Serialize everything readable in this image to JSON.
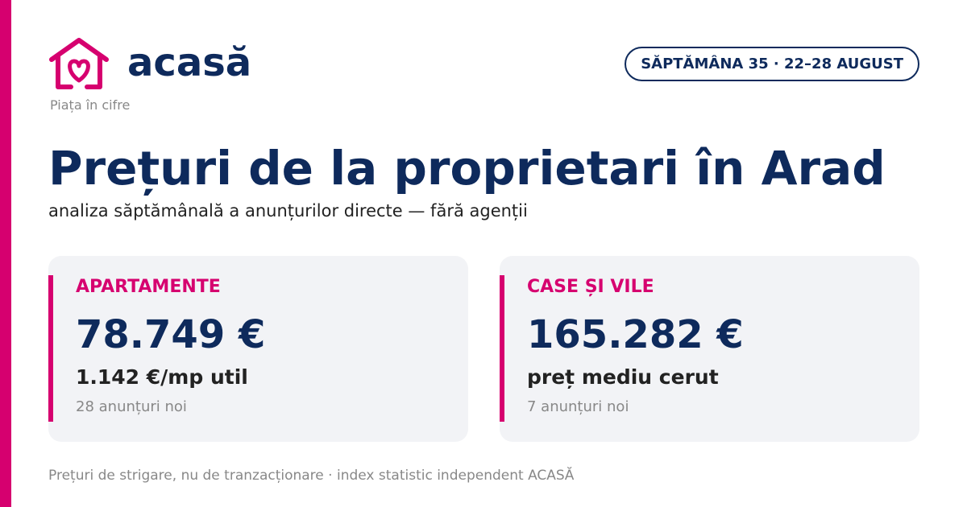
{
  "brand": {
    "name": "acasă",
    "tagline": "Piața în cifre"
  },
  "badge": "SĂPTĂMÂNA 35 · 22–28 AUGUST",
  "header": {
    "title": "Prețuri de la proprietari în Arad",
    "subtitle": "analiza săptămânală a anunțurilor directe — fără agenții"
  },
  "cards": [
    {
      "label": "APARTAMENTE",
      "price": "78.749 €",
      "detail": "1.142 €/mp util",
      "count": "28 anunțuri noi"
    },
    {
      "label": "CASE ȘI VILE",
      "price": "165.282 €",
      "detail": "preț mediu cerut",
      "count": "7 anunțuri noi"
    }
  ],
  "footer": "Prețuri de strigare, nu de tranzacționare · index statistic independent ACASĂ"
}
